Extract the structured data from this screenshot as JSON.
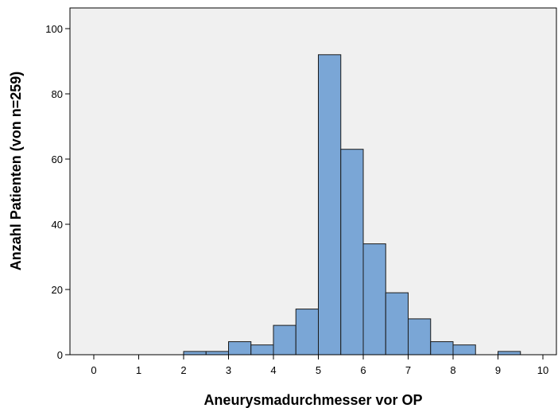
{
  "chart_data": {
    "type": "bar",
    "title": "",
    "xlabel": "Aneurysmadurchmesser vor OP",
    "ylabel": "Anzahl Patienten (von n=259)",
    "xlim": [
      -0.5,
      10.3
    ],
    "ylim": [
      0,
      104
    ],
    "x_ticks": [
      0,
      1,
      2,
      3,
      4,
      5,
      6,
      7,
      8,
      9,
      10
    ],
    "y_ticks": [
      0,
      20,
      40,
      60,
      80,
      100
    ],
    "bin_width": 0.5,
    "bins": [
      {
        "x0": 2.0,
        "x1": 2.5,
        "count": 1
      },
      {
        "x0": 2.5,
        "x1": 3.0,
        "count": 1
      },
      {
        "x0": 3.0,
        "x1": 3.5,
        "count": 4
      },
      {
        "x0": 3.5,
        "x1": 4.0,
        "count": 3
      },
      {
        "x0": 4.0,
        "x1": 4.5,
        "count": 9
      },
      {
        "x0": 4.5,
        "x1": 5.0,
        "count": 14
      },
      {
        "x0": 5.0,
        "x1": 5.5,
        "count": 92
      },
      {
        "x0": 5.5,
        "x1": 6.0,
        "count": 63
      },
      {
        "x0": 6.0,
        "x1": 6.5,
        "count": 34
      },
      {
        "x0": 6.5,
        "x1": 7.0,
        "count": 19
      },
      {
        "x0": 7.0,
        "x1": 7.5,
        "count": 11
      },
      {
        "x0": 7.5,
        "x1": 8.0,
        "count": 4
      },
      {
        "x0": 8.0,
        "x1": 8.5,
        "count": 3
      },
      {
        "x0": 9.0,
        "x1": 9.5,
        "count": 1
      }
    ],
    "grid": false,
    "legend": "none",
    "colors": {
      "bar_fill": "#7aa6d6",
      "bar_stroke": "#1a1a1a",
      "plot_background": "#f0f0f0",
      "axis": "#000000"
    }
  }
}
